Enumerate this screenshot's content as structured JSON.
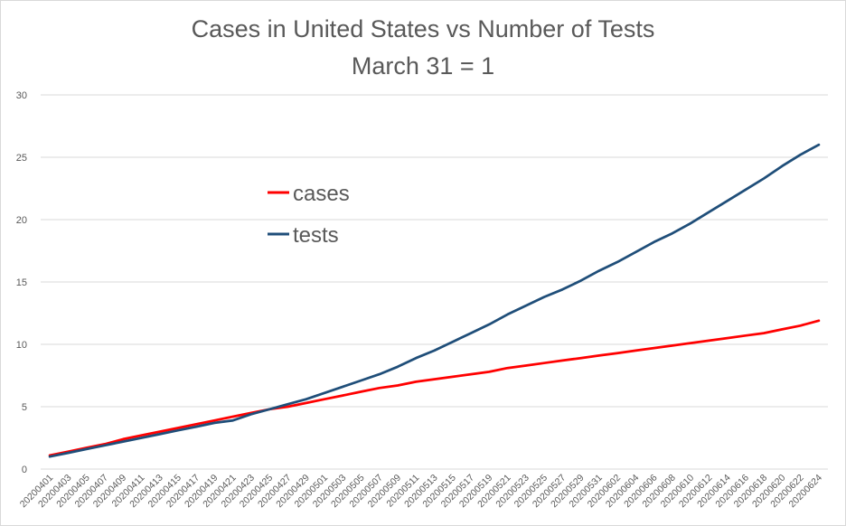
{
  "chart_data": {
    "type": "line",
    "title": "Cases in United States vs Number of Tests",
    "subtitle": "March 31 = 1",
    "xlabel": "",
    "ylabel": "",
    "ylim": [
      0,
      30
    ],
    "yticks": [
      0,
      5,
      10,
      15,
      20,
      25,
      30
    ],
    "grid": true,
    "legend_position": "inside-upper-left",
    "x_tick_labels": [
      "20200401",
      "20200403",
      "20200405",
      "20200407",
      "20200409",
      "20200411",
      "20200413",
      "20200415",
      "20200417",
      "20200419",
      "20200421",
      "20200423",
      "20200425",
      "20200427",
      "20200429",
      "20200501",
      "20200503",
      "20200505",
      "20200507",
      "20200509",
      "20200511",
      "20200513",
      "20200515",
      "20200517",
      "20200519",
      "20200521",
      "20200523",
      "20200525",
      "20200527",
      "20200529",
      "20200531",
      "20200602",
      "20200604",
      "20200606",
      "20200608",
      "20200610",
      "20200612",
      "20200614",
      "20200616",
      "20200618",
      "20200620",
      "20200622",
      "20200624"
    ],
    "series": [
      {
        "name": "cases",
        "color": "#ff0000",
        "x": [
          "20200401",
          "20200403",
          "20200405",
          "20200407",
          "20200409",
          "20200411",
          "20200413",
          "20200415",
          "20200417",
          "20200419",
          "20200421",
          "20200423",
          "20200425",
          "20200427",
          "20200429",
          "20200501",
          "20200503",
          "20200505",
          "20200507",
          "20200509",
          "20200511",
          "20200513",
          "20200515",
          "20200517",
          "20200519",
          "20200521",
          "20200523",
          "20200525",
          "20200527",
          "20200529",
          "20200531",
          "20200602",
          "20200604",
          "20200606",
          "20200608",
          "20200610",
          "20200612",
          "20200614",
          "20200616",
          "20200618",
          "20200620",
          "20200622",
          "20200624"
        ],
        "values": [
          1.1,
          1.4,
          1.7,
          2.0,
          2.4,
          2.7,
          3.0,
          3.3,
          3.6,
          3.9,
          4.2,
          4.5,
          4.8,
          5.0,
          5.3,
          5.6,
          5.9,
          6.2,
          6.5,
          6.7,
          7.0,
          7.2,
          7.4,
          7.6,
          7.8,
          8.1,
          8.3,
          8.5,
          8.7,
          8.9,
          9.1,
          9.3,
          9.5,
          9.7,
          9.9,
          10.1,
          10.3,
          10.5,
          10.7,
          10.9,
          11.2,
          11.5,
          11.9
        ]
      },
      {
        "name": "tests",
        "color": "#1f4e79",
        "x": [
          "20200401",
          "20200403",
          "20200405",
          "20200407",
          "20200409",
          "20200411",
          "20200413",
          "20200415",
          "20200417",
          "20200419",
          "20200421",
          "20200423",
          "20200425",
          "20200427",
          "20200429",
          "20200501",
          "20200503",
          "20200505",
          "20200507",
          "20200509",
          "20200511",
          "20200513",
          "20200515",
          "20200517",
          "20200519",
          "20200521",
          "20200523",
          "20200525",
          "20200527",
          "20200529",
          "20200531",
          "20200602",
          "20200604",
          "20200606",
          "20200608",
          "20200610",
          "20200612",
          "20200614",
          "20200616",
          "20200618",
          "20200620",
          "20200622",
          "20200624"
        ],
        "values": [
          1.0,
          1.3,
          1.6,
          1.9,
          2.2,
          2.5,
          2.8,
          3.1,
          3.4,
          3.7,
          3.9,
          4.4,
          4.8,
          5.2,
          5.6,
          6.1,
          6.6,
          7.1,
          7.6,
          8.2,
          8.9,
          9.5,
          10.2,
          10.9,
          11.6,
          12.4,
          13.1,
          13.8,
          14.4,
          15.1,
          15.9,
          16.6,
          17.4,
          18.2,
          18.9,
          19.7,
          20.6,
          21.5,
          22.4,
          23.3,
          24.3,
          25.2,
          26.0
        ]
      }
    ]
  }
}
